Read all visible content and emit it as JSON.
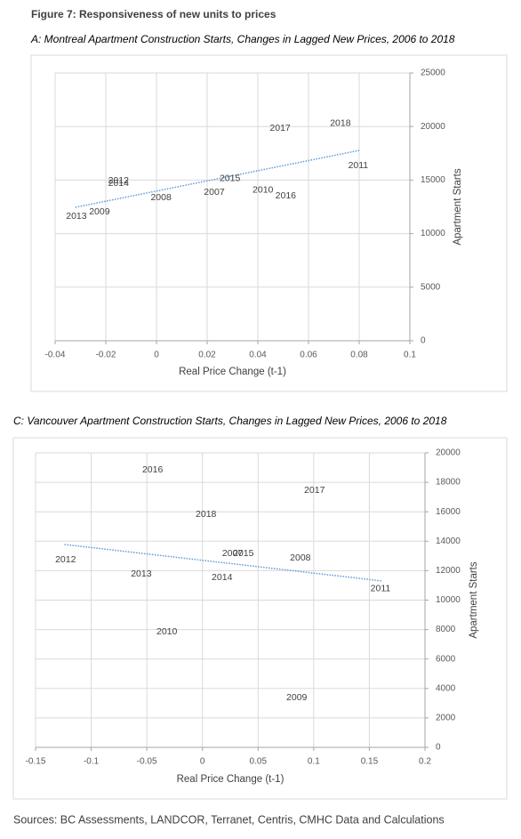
{
  "figure_title": "Figure 7: Responsiveness of new units to prices",
  "chart_data": [
    {
      "type": "scatter",
      "title": "A: Montreal Apartment Construction Starts, Changes in Lagged New Prices, 2006 to 2018",
      "x_label": "Real Price Change (t-1)",
      "y_label": "Apartment Starts",
      "point_labels": [
        "2017",
        "2018",
        "2011",
        "2015",
        "2007",
        "2010",
        "2016",
        "2012",
        "2014",
        "2008",
        "2013",
        "2009"
      ],
      "x": [
        0.0488,
        0.0726,
        0.0796,
        0.029,
        0.0228,
        0.042,
        0.051,
        -0.015,
        -0.015,
        0.0018,
        -0.0316,
        -0.0225
      ],
      "values": [
        19850,
        20270,
        16360,
        15120,
        13870,
        14040,
        13540,
        14950,
        14700,
        13370,
        11630,
        12040
      ],
      "trendline": {
        "x": [
          -0.032,
          0.08
        ],
        "values": [
          12460,
          17770
        ],
        "color": "#5b9bd5"
      },
      "xlim": [
        -0.04,
        0.1
      ],
      "xticks": [
        -0.04,
        -0.02,
        0,
        0.02,
        0.04,
        0.06,
        0.08,
        0.1
      ],
      "ylim": [
        0,
        25000
      ],
      "yticks": [
        0,
        5000,
        10000,
        15000,
        20000,
        25000
      ],
      "grid": true
    },
    {
      "type": "scatter",
      "title": "C: Vancouver Apartment Construction Starts, Changes in Lagged New Prices, 2006 to 2018",
      "x_label": "Real Price Change (t-1)",
      "y_label": "Apartment Starts",
      "point_labels": [
        "2016",
        "2017",
        "2018",
        "2007",
        "2015",
        "2008",
        "2012",
        "2013",
        "2014",
        "2011",
        "2010",
        "2009"
      ],
      "x": [
        -0.0448,
        0.1007,
        0.0032,
        0.027,
        0.0368,
        0.088,
        -0.123,
        -0.055,
        0.0176,
        0.16,
        -0.032,
        0.0847
      ],
      "values": [
        18850,
        17460,
        15830,
        13170,
        13170,
        12870,
        12750,
        11780,
        11540,
        10760,
        7850,
        3380
      ],
      "trendline": {
        "x": [
          -0.124,
          0.1615
        ],
        "values": [
          13780,
          11300
        ],
        "color": "#5b9bd5"
      },
      "xlim": [
        -0.15,
        0.2
      ],
      "xticks": [
        -0.15,
        -0.1,
        -0.05,
        0,
        0.05,
        0.1,
        0.15,
        0.2
      ],
      "ylim": [
        0,
        20000
      ],
      "yticks": [
        0,
        2000,
        4000,
        6000,
        8000,
        10000,
        12000,
        14000,
        16000,
        18000,
        20000
      ],
      "grid": true
    }
  ],
  "source": "Sources: BC Assessments, LANDCOR, Terranet, Centris, CMHC Data and Calculations"
}
